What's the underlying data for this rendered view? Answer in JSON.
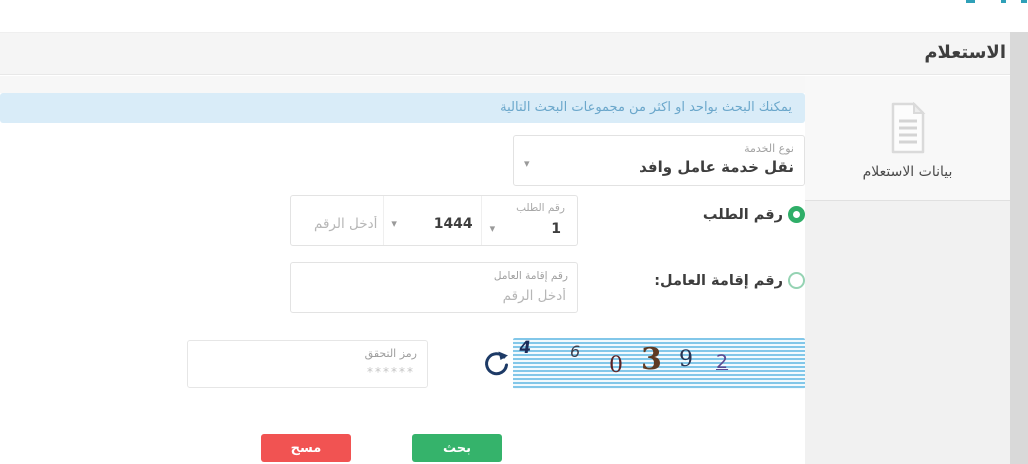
{
  "page": {
    "title": "الاستعلام"
  },
  "sidebar": {
    "active_item": {
      "icon": "document-icon",
      "label": "بيانات الاستعلام"
    }
  },
  "info_banner": {
    "text": "يمكنك البحث بواحد او اكثر من مجموعات البحث التالية"
  },
  "form": {
    "service_type": {
      "label": "نوع الخدمة",
      "value": "نقل خدمة عامل وافد"
    },
    "request_number": {
      "radio_label": "رقم الطلب",
      "selected": true,
      "serial": {
        "label": "رقم الطلب",
        "value": "1"
      },
      "year": {
        "value": "1444"
      },
      "number": {
        "placeholder": "أدخل الرقم"
      }
    },
    "iqama_number": {
      "radio_label": "رقم إقامة العامل:",
      "selected": false,
      "field_label": "رقم إقامة العامل",
      "placeholder": "أدخل الرقم"
    },
    "captcha": {
      "label": "رمز التحقق",
      "placeholder": "******",
      "chars": [
        "4",
        "6",
        "0",
        "3",
        "9",
        "2"
      ],
      "refresh_icon": "refresh-icon"
    },
    "buttons": {
      "search": "بحث",
      "clear": "مسح"
    }
  },
  "colors": {
    "accent_green": "#2fae68",
    "danger_red": "#f15352",
    "info_bg": "#d9ecf8",
    "info_text": "#6ba7cb",
    "header_bg": "#f5f5f5",
    "captcha_stripe": "#82c7e9"
  }
}
